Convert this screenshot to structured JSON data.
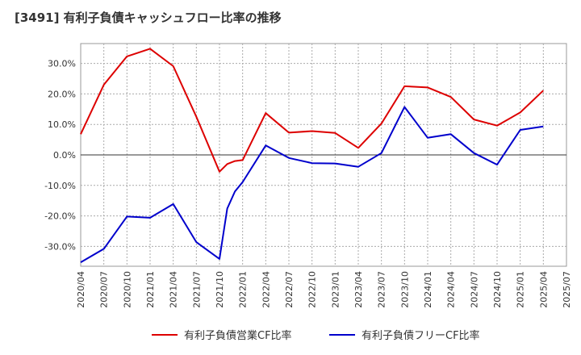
{
  "title": "[3491]  有利子負債キャッシュフロー比率の推移",
  "chart_data": {
    "type": "line",
    "title": "[3491]  有利子負債キャッシュフロー比率の推移",
    "xlabel": "",
    "ylabel": "",
    "x": [
      "2020/04",
      "2020/07",
      "2020/10",
      "2021/01",
      "2021/02",
      "2021/04",
      "2021/07",
      "2021/10",
      "2021/11",
      "2022/01",
      "2022/04",
      "2022/07",
      "2022/10",
      "2023/01",
      "2023/04",
      "2023/07",
      "2023/10",
      "2024/01",
      "2024/04",
      "2024/07",
      "2024/10",
      "2025/01",
      "2025/04"
    ],
    "x_ticks": [
      "2020/04",
      "2020/07",
      "2020/10",
      "2021/01",
      "2021/04",
      "2021/07",
      "2021/10",
      "2022/01",
      "2022/04",
      "2022/07",
      "2022/10",
      "2023/01",
      "2023/04",
      "2023/07",
      "2023/10",
      "2024/01",
      "2024/04",
      "2024/07",
      "2024/10",
      "2025/01",
      "2025/04",
      "2025/07"
    ],
    "y_ticks": [
      "30.0%",
      "20.0%",
      "10.0%",
      "0.0%",
      "-10.0%",
      "-20.0%",
      "-30.0%"
    ],
    "ylim": [
      -36.5,
      36.5
    ],
    "xlim": [
      "2020/04",
      "2025/07"
    ],
    "grid": true,
    "legend_position": "bottom",
    "series": [
      {
        "name": "有利子負債営業CF比率",
        "color": "#dd0000",
        "points": [
          [
            "2020/04",
            6.8
          ],
          [
            "2020/07",
            23.0
          ],
          [
            "2020/10",
            32.3
          ],
          [
            "2021/01",
            34.8
          ],
          [
            "2021/04",
            29.1
          ],
          [
            "2021/07",
            12.5
          ],
          [
            "2021/10",
            -5.5
          ],
          [
            "2021/11",
            -3.0
          ],
          [
            "2021/12",
            -2.0
          ],
          [
            "2022/01",
            -1.7
          ],
          [
            "2022/04",
            13.7
          ],
          [
            "2022/07",
            7.3
          ],
          [
            "2022/10",
            7.8
          ],
          [
            "2023/01",
            7.2
          ],
          [
            "2023/04",
            2.3
          ],
          [
            "2023/07",
            10.3
          ],
          [
            "2023/10",
            22.5
          ],
          [
            "2024/01",
            22.1
          ],
          [
            "2024/04",
            19.0
          ],
          [
            "2024/07",
            11.6
          ],
          [
            "2024/10",
            9.6
          ],
          [
            "2025/01",
            13.9
          ],
          [
            "2025/04",
            21.1
          ]
        ]
      },
      {
        "name": "有利子負債フリーCF比率",
        "color": "#0000cc",
        "points": [
          [
            "2020/04",
            -35.2
          ],
          [
            "2020/07",
            -30.8
          ],
          [
            "2020/10",
            -20.2
          ],
          [
            "2021/01",
            -20.6
          ],
          [
            "2021/04",
            -16.1
          ],
          [
            "2021/07",
            -28.6
          ],
          [
            "2021/10",
            -34.1
          ],
          [
            "2021/11",
            -17.6
          ],
          [
            "2021/12",
            -12.0
          ],
          [
            "2022/01",
            -8.9
          ],
          [
            "2022/04",
            3.1
          ],
          [
            "2022/07",
            -1.0
          ],
          [
            "2022/10",
            -2.7
          ],
          [
            "2023/01",
            -2.8
          ],
          [
            "2023/04",
            -3.9
          ],
          [
            "2023/07",
            0.6
          ],
          [
            "2023/10",
            15.7
          ],
          [
            "2024/01",
            5.6
          ],
          [
            "2024/04",
            6.8
          ],
          [
            "2024/07",
            0.6
          ],
          [
            "2024/10",
            -3.2
          ],
          [
            "2025/01",
            8.2
          ],
          [
            "2025/04",
            9.3
          ]
        ]
      }
    ]
  }
}
